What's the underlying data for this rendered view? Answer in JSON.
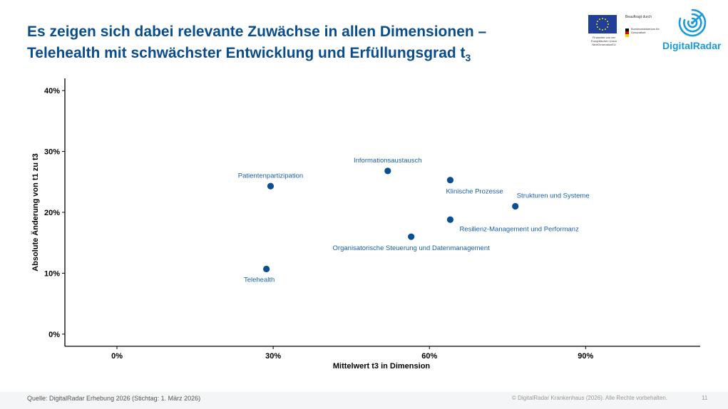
{
  "header": {
    "title_line1": "Es zeigen sich dabei relevante Zuwächse in allen Dimensionen –",
    "title_line2": "Telehealth mit schwächster Entwicklung und Erfüllungsgrad t",
    "title_sub": "3"
  },
  "logos": {
    "eu_caption": "Finanziert von der Europäischen Union NextGenerationEU",
    "commissioned_by": "Beauftragt durch",
    "ministry_caption": "Bundesministerium für Gesundheit",
    "brand": "DigitalRadar",
    "brand_color": "#1a9ad6"
  },
  "chart_data": {
    "type": "scatter",
    "xlabel": "Mittelwert t3 in Dimension",
    "ylabel": "Absolute Änderung von t1 zu t3",
    "xlim": [
      -0.1,
      1.12
    ],
    "ylim": [
      -0.02,
      0.42
    ],
    "x_ticks": [
      0,
      0.3,
      0.6,
      0.9
    ],
    "x_tick_labels": [
      "0%",
      "30%",
      "60%",
      "90%"
    ],
    "y_ticks": [
      0,
      0.1,
      0.2,
      0.3,
      0.4
    ],
    "y_tick_labels": [
      "0%",
      "10%",
      "20%",
      "30%",
      "40%"
    ],
    "grid": false,
    "point_color": "#0a4f94",
    "label_color": "#1b5fa3",
    "points": [
      {
        "label": "Informationsaustausch",
        "x": 0.52,
        "y": 0.268,
        "label_pos": "above"
      },
      {
        "label": "Patientenpartizipation",
        "x": 0.295,
        "y": 0.243,
        "label_pos": "above"
      },
      {
        "label": "Klinische Prozesse",
        "x": 0.64,
        "y": 0.253,
        "label_pos": "below"
      },
      {
        "label": "Strukturen und Systeme",
        "x": 0.765,
        "y": 0.21,
        "label_pos": "above-right"
      },
      {
        "label": "Resilienz-Management und Performanz",
        "x": 0.64,
        "y": 0.188,
        "label_pos": "below-right"
      },
      {
        "label": "Organisatorische Steuerung und Datenmanagement",
        "x": 0.565,
        "y": 0.16,
        "label_pos": "below"
      },
      {
        "label": "Telehealth",
        "x": 0.287,
        "y": 0.107,
        "label_pos": "below-left"
      }
    ]
  },
  "footer": {
    "source": "Quelle: DigitalRadar Erhebung 2026 (Stichtag: 1. März 2026)",
    "copyright": "© DigitalRadar Krankenhaus (2026). Alle Rechte vorbehalten.",
    "page_number": "11"
  }
}
